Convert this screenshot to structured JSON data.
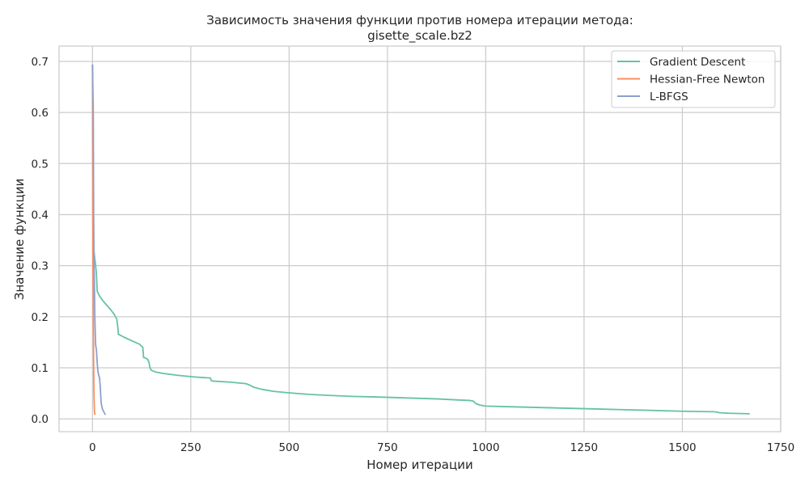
{
  "chart_data": {
    "type": "line",
    "title_line1": "Зависимость значения функции против номера итерации метода:",
    "title_line2": "gisette_scale.bz2",
    "xlabel": "Номер итерации",
    "ylabel": "Значение функции",
    "xlim": [
      -85,
      1750
    ],
    "ylim": [
      -0.025,
      0.73
    ],
    "xticks": [
      0,
      250,
      500,
      750,
      1000,
      1250,
      1500,
      1750
    ],
    "yticks": [
      0.0,
      0.1,
      0.2,
      0.3,
      0.4,
      0.5,
      0.6,
      0.7
    ],
    "ytick_labels": [
      "0.0",
      "0.1",
      "0.2",
      "0.3",
      "0.4",
      "0.5",
      "0.6",
      "0.7"
    ],
    "grid": true,
    "legend_position": "top-right",
    "series": [
      {
        "name": "Gradient Descent",
        "color": "#66c2a5",
        "x": [
          0,
          2,
          5,
          8,
          10,
          12,
          15,
          20,
          30,
          45,
          55,
          62,
          65,
          66,
          68,
          80,
          100,
          120,
          128,
          130,
          132,
          140,
          144,
          146,
          150,
          160,
          180,
          220,
          260,
          300,
          302,
          306,
          350,
          390,
          400,
          410,
          430,
          460,
          500,
          550,
          600,
          660,
          720,
          800,
          880,
          930,
          960,
          968,
          975,
          985,
          1000,
          1050,
          1100,
          1200,
          1300,
          1400,
          1500,
          1580,
          1590,
          1595,
          1620,
          1670
        ],
        "y": [
          0.693,
          0.34,
          0.32,
          0.3,
          0.285,
          0.25,
          0.245,
          0.238,
          0.228,
          0.215,
          0.205,
          0.195,
          0.175,
          0.165,
          0.165,
          0.16,
          0.153,
          0.146,
          0.14,
          0.12,
          0.12,
          0.117,
          0.11,
          0.1,
          0.095,
          0.092,
          0.089,
          0.085,
          0.082,
          0.08,
          0.075,
          0.074,
          0.072,
          0.069,
          0.066,
          0.062,
          0.058,
          0.054,
          0.051,
          0.048,
          0.046,
          0.044,
          0.043,
          0.041,
          0.039,
          0.037,
          0.036,
          0.035,
          0.03,
          0.027,
          0.025,
          0.024,
          0.023,
          0.021,
          0.019,
          0.017,
          0.015,
          0.014,
          0.013,
          0.012,
          0.011,
          0.01
        ]
      },
      {
        "name": "Hessian-Free Newton",
        "color": "#fc8d62",
        "x": [
          0,
          1,
          2,
          3,
          4,
          5,
          6
        ],
        "y": [
          0.693,
          0.35,
          0.2,
          0.1,
          0.04,
          0.015,
          0.009
        ]
      },
      {
        "name": "L-BFGS",
        "color": "#8da0cb",
        "x": [
          0,
          2,
          3,
          4,
          5,
          6,
          7,
          8,
          9,
          10,
          12,
          14,
          16,
          18,
          20,
          22,
          25,
          28,
          32
        ],
        "y": [
          0.693,
          0.6,
          0.4,
          0.3,
          0.26,
          0.2,
          0.17,
          0.145,
          0.14,
          0.135,
          0.11,
          0.092,
          0.085,
          0.08,
          0.06,
          0.032,
          0.02,
          0.015,
          0.009
        ]
      }
    ]
  }
}
